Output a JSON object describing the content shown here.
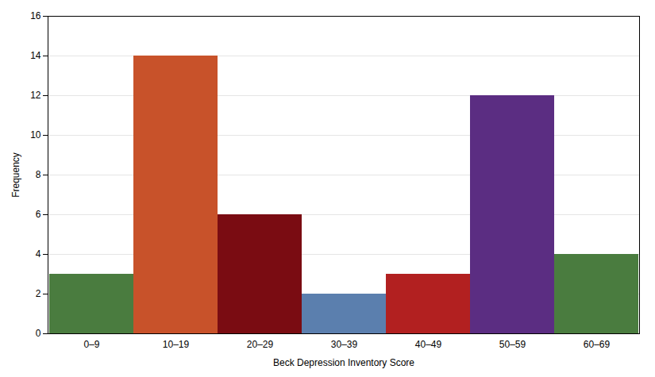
{
  "chart_data": {
    "type": "bar",
    "categories": [
      "0–9",
      "10–19",
      "20–29",
      "30–39",
      "40–49",
      "50–59",
      "60–69"
    ],
    "values": [
      3,
      14,
      6,
      2,
      3,
      12,
      4
    ],
    "colors": [
      "#4a7c3f",
      "#c8522a",
      "#7a0c12",
      "#5b7fae",
      "#b22020",
      "#5b2d82",
      "#4a7c3f"
    ],
    "xlabel": "Beck Depression Inventory Score",
    "ylabel": "Frequency",
    "ylim": [
      0,
      16
    ],
    "yticks": [
      0,
      2,
      4,
      6,
      8,
      10,
      12,
      14,
      16
    ],
    "grid": true
  }
}
